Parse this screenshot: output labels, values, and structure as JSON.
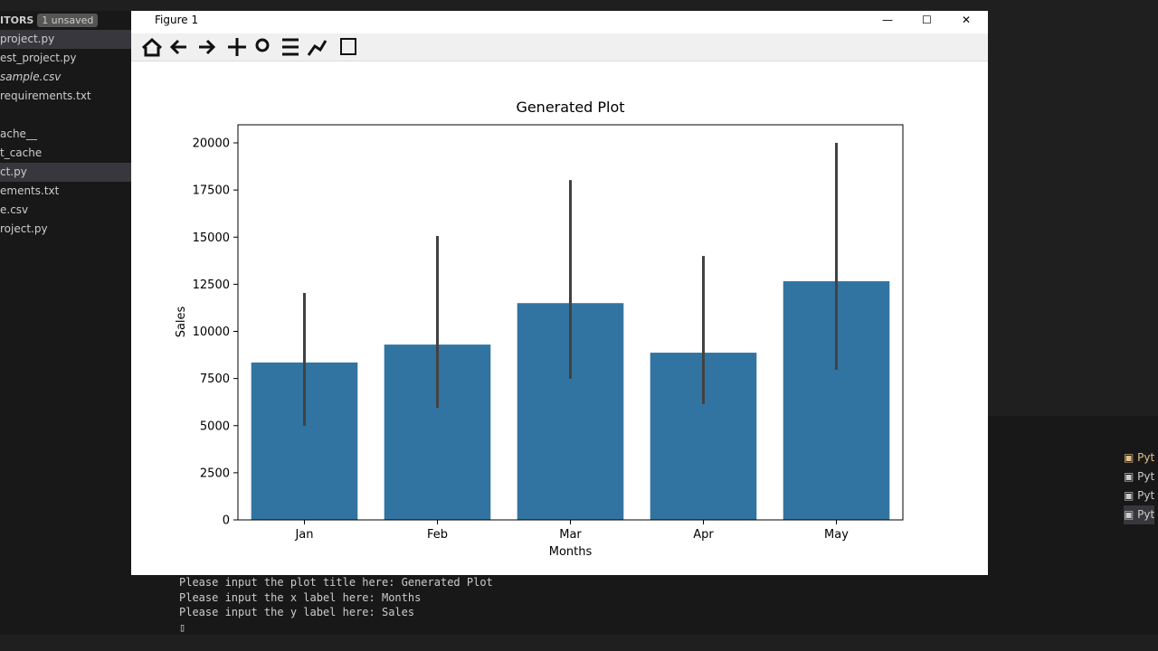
{
  "editor": {
    "section": "ITORS",
    "badge": "1 unsaved",
    "files": [
      "project.py",
      "est_project.py",
      "sample.csv",
      "requirements.txt"
    ],
    "tree": [
      "ache__",
      "t_cache",
      "ct.py",
      "ements.txt",
      "e.csv",
      "roject.py"
    ]
  },
  "window": {
    "title": "Figure 1"
  },
  "terminal": {
    "lines": [
      "Please input the plot title here: Generated Plot",
      "Please input the x label here: Months",
      "Please input the y label here: Sales"
    ]
  },
  "panel": {
    "items": [
      "Pyt",
      "Pyt",
      "Pyt",
      "Pyt"
    ]
  },
  "chart_data": {
    "type": "bar",
    "title": "Generated Plot",
    "x_label": "Months",
    "y_label": "Sales",
    "categories": [
      "Jan",
      "Feb",
      "Mar",
      "Apr",
      "May"
    ],
    "values": [
      8350,
      9300,
      11500,
      8870,
      12660
    ],
    "ci_low": [
      4990,
      5950,
      7480,
      6140,
      7960
    ],
    "ci_high": [
      12040,
      15060,
      18030,
      14000,
      20000
    ],
    "color": "#3274a1",
    "error_color": "#424242",
    "ylim": [
      0,
      20960
    ],
    "yticks": [
      0,
      2500,
      5000,
      7500,
      10000,
      12500,
      15000,
      17500,
      20000
    ],
    "grid": false
  }
}
